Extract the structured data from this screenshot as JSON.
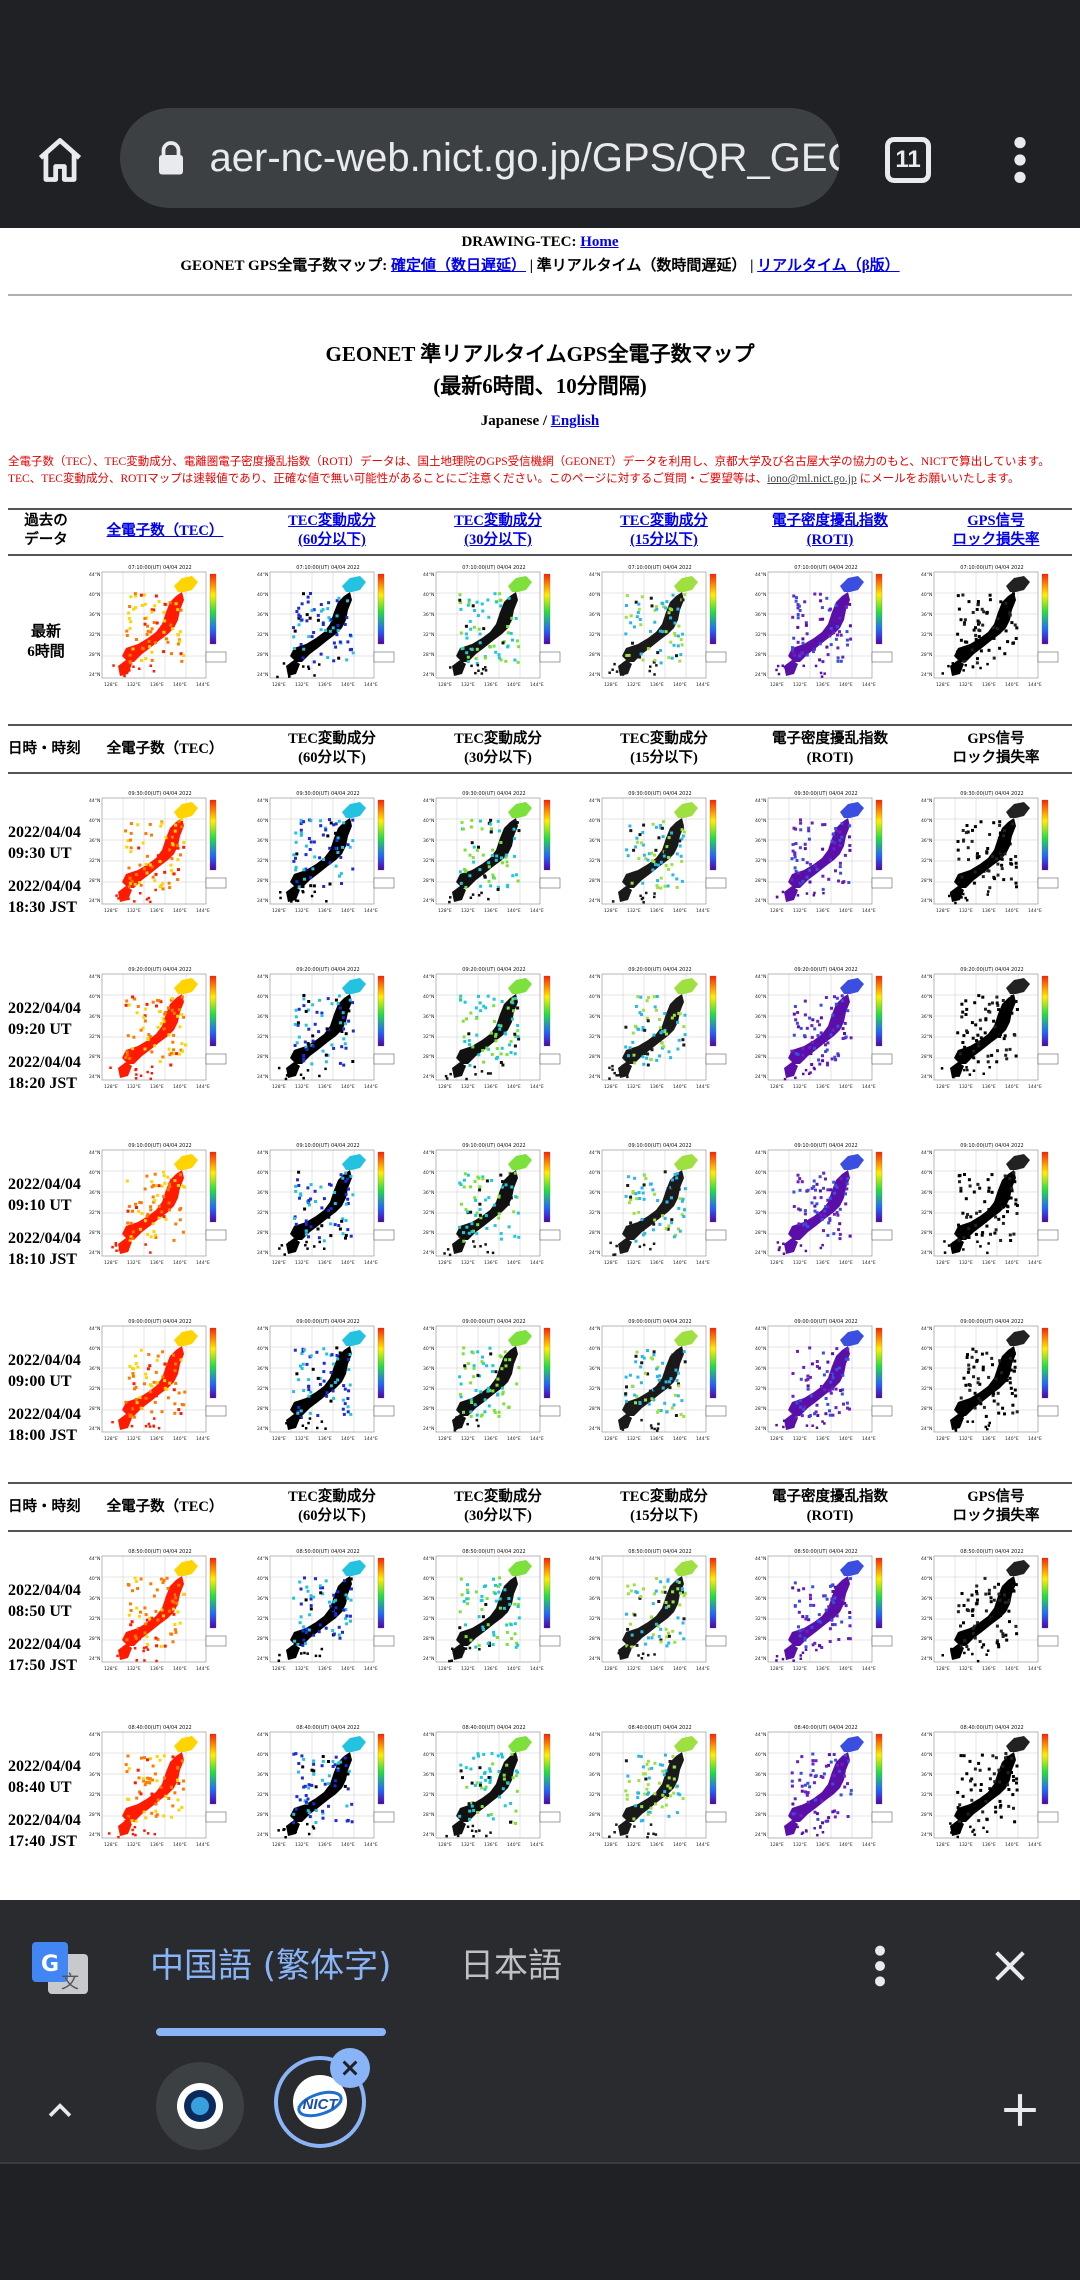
{
  "browser": {
    "url": "aer-nc-web.nict.go.jp/GPS/QR_GEONET",
    "tab_count": "11"
  },
  "page": {
    "nav_line1_prefix": "DRAWING-TEC: ",
    "nav_home": "Home",
    "nav_line2_prefix": "GEONET GPS全電子数マップ: ",
    "nav_confirmed": "確定値（数日遅延）",
    "nav_sep1": " | 準リアルタイム（数時間遅延） | ",
    "nav_realtime": "リアルタイム（β版）",
    "title_line1": "GEONET 準リアルタイムGPS全電子数マップ",
    "title_line2": "(最新6時間、10分間隔)",
    "lang_japanese": "Japanese",
    "lang_sep": " / ",
    "lang_english": "English",
    "notice_line1": "全電子数（TEC）、TEC変動成分、電離圏電子密度擾乱指数（ROTI）データは、国土地理院のGPS受信機網（GEONET）データを利用し、京都大学及び名古屋大学の協力のもと、NICTで算出しています。",
    "notice_line2": "TEC、TEC変動成分、ROTIマップは速報値であり、正確な値で無い可能性があることにご注意ください。このページに対するご質問・ご要望等は、",
    "notice_email": "iono@ml.nict.go.jp",
    "notice_line2_end": " にメールをお願いいたします。"
  },
  "latest_header": {
    "past_data_l1": "過去の",
    "past_data_l2": "データ",
    "cols": [
      {
        "l1": "全電子数（TEC）",
        "l2": ""
      },
      {
        "l1": "TEC変動成分",
        "l2": "(60分以下)"
      },
      {
        "l1": "TEC変動成分",
        "l2": "(30分以下)"
      },
      {
        "l1": "TEC変動成分",
        "l2": "(15分以下)"
      },
      {
        "l1": "電子密度擾乱指数",
        "l2": "(ROTI)"
      },
      {
        "l1": "GPS信号",
        "l2": "ロック損失率"
      }
    ],
    "latest_label_l1": "最新",
    "latest_label_l2": "6時間",
    "map_caption": "07:10:00(UT) 04/04 2022"
  },
  "table_header": {
    "datetime": "日時・時刻",
    "cols": [
      {
        "l1": "全電子数（TEC）",
        "l2": ""
      },
      {
        "l1": "TEC変動成分",
        "l2": "(60分以下)"
      },
      {
        "l1": "TEC変動成分",
        "l2": "(30分以下)"
      },
      {
        "l1": "TEC変動成分",
        "l2": "(15分以下)"
      },
      {
        "l1": "電子密度擾乱指数",
        "l2": "(ROTI)"
      },
      {
        "l1": "GPS信号",
        "l2": "ロック損失率"
      }
    ]
  },
  "rows": [
    {
      "date_ut": "2022/04/04",
      "time_ut": "09:30 UT",
      "date_jst": "2022/04/04",
      "time_jst": "18:30 JST",
      "caption": "09:30:00(UT) 04/04 2022"
    },
    {
      "date_ut": "2022/04/04",
      "time_ut": "09:20 UT",
      "date_jst": "2022/04/04",
      "time_jst": "18:20 JST",
      "caption": "09:20:00(UT) 04/04 2022"
    },
    {
      "date_ut": "2022/04/04",
      "time_ut": "09:10 UT",
      "date_jst": "2022/04/04",
      "time_jst": "18:10 JST",
      "caption": "09:10:00(UT) 04/04 2022"
    },
    {
      "date_ut": "2022/04/04",
      "time_ut": "09:00 UT",
      "date_jst": "2022/04/04",
      "time_jst": "18:00 JST",
      "caption": "09:00:00(UT) 04/04 2022"
    },
    {
      "date_ut": "2022/04/04",
      "time_ut": "08:50 UT",
      "date_jst": "2022/04/04",
      "time_jst": "17:50 JST",
      "caption": "08:50:00(UT) 04/04 2022"
    },
    {
      "date_ut": "2022/04/04",
      "time_ut": "08:40 UT",
      "date_jst": "2022/04/04",
      "time_jst": "17:40 JST",
      "caption": "08:40:00(UT) 04/04 2022"
    }
  ],
  "map_types": [
    "tec",
    "dtec60",
    "dtec30",
    "dtec15",
    "roti",
    "lol"
  ],
  "colors": {
    "tec": [
      "#ff1a00",
      "#ff7a00",
      "#ffd400"
    ],
    "dtec60": [
      "#000000",
      "#1e2bd6",
      "#22c2e0"
    ],
    "dtec30": [
      "#111111",
      "#1ec8d8",
      "#7ee03a"
    ],
    "dtec15": [
      "#1a1a1a",
      "#2ab8e8",
      "#9ee040"
    ],
    "roti": [
      "#5a0fa8",
      "#6a22c0",
      "#3a4ee0"
    ],
    "lol": [
      "#000000",
      "#000000",
      "#222222"
    ]
  },
  "translate": {
    "from_lang": "中国語 (繁体字)",
    "to_lang": "日本語"
  }
}
